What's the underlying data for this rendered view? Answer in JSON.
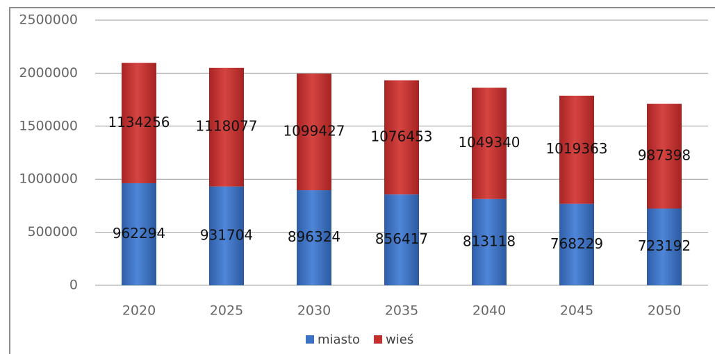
{
  "chart_data": {
    "type": "stacked_bar",
    "categories": [
      "2020",
      "2025",
      "2030",
      "2035",
      "2040",
      "2045",
      "2050"
    ],
    "series": [
      {
        "name": "miasto",
        "color": "#3b72c6",
        "values": [
          962294,
          931704,
          896324,
          856417,
          813118,
          768229,
          723192
        ]
      },
      {
        "name": "wieś",
        "color": "#c3312f",
        "values": [
          1134256,
          1118077,
          1099427,
          1076453,
          1049340,
          1019363,
          987398
        ]
      }
    ],
    "ylim": [
      0,
      2500000
    ],
    "yticks": [
      0,
      500000,
      1000000,
      1500000,
      2000000,
      2500000
    ],
    "grid": true,
    "legend": "bottom"
  }
}
